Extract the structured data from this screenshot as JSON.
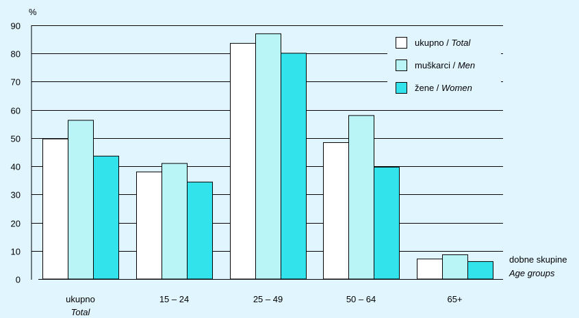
{
  "chart_data": {
    "type": "bar",
    "ylabel": "%",
    "ylim": [
      0,
      90
    ],
    "yticks": [
      0,
      10,
      20,
      30,
      40,
      50,
      60,
      70,
      80,
      90
    ],
    "grid": true,
    "legend_position": "top-right",
    "categories": [
      {
        "label": "ukupno",
        "label_en": "Total"
      },
      {
        "label": "15 – 24",
        "label_en": ""
      },
      {
        "label": "25 – 49",
        "label_en": ""
      },
      {
        "label": "50 – 64",
        "label_en": ""
      },
      {
        "label": "65+",
        "label_en": ""
      }
    ],
    "series": [
      {
        "name": "ukupno",
        "name_en": "Total",
        "color": "#ffffff",
        "values": [
          49.7,
          38.0,
          83.6,
          48.4,
          7.1
        ]
      },
      {
        "name": "muškarci",
        "name_en": "Men",
        "color": "#b9f4f7",
        "values": [
          56.3,
          41.0,
          87.0,
          58.0,
          8.6
        ]
      },
      {
        "name": "žene",
        "name_en": "Women",
        "color": "#33e3ec",
        "values": [
          43.6,
          34.4,
          80.1,
          39.7,
          6.2
        ]
      }
    ],
    "xlabel": {
      "label": "dobne skupine",
      "label_en": "Age groups"
    }
  },
  "colors": {
    "background": "#e1f5fe",
    "axis": "#000000"
  }
}
